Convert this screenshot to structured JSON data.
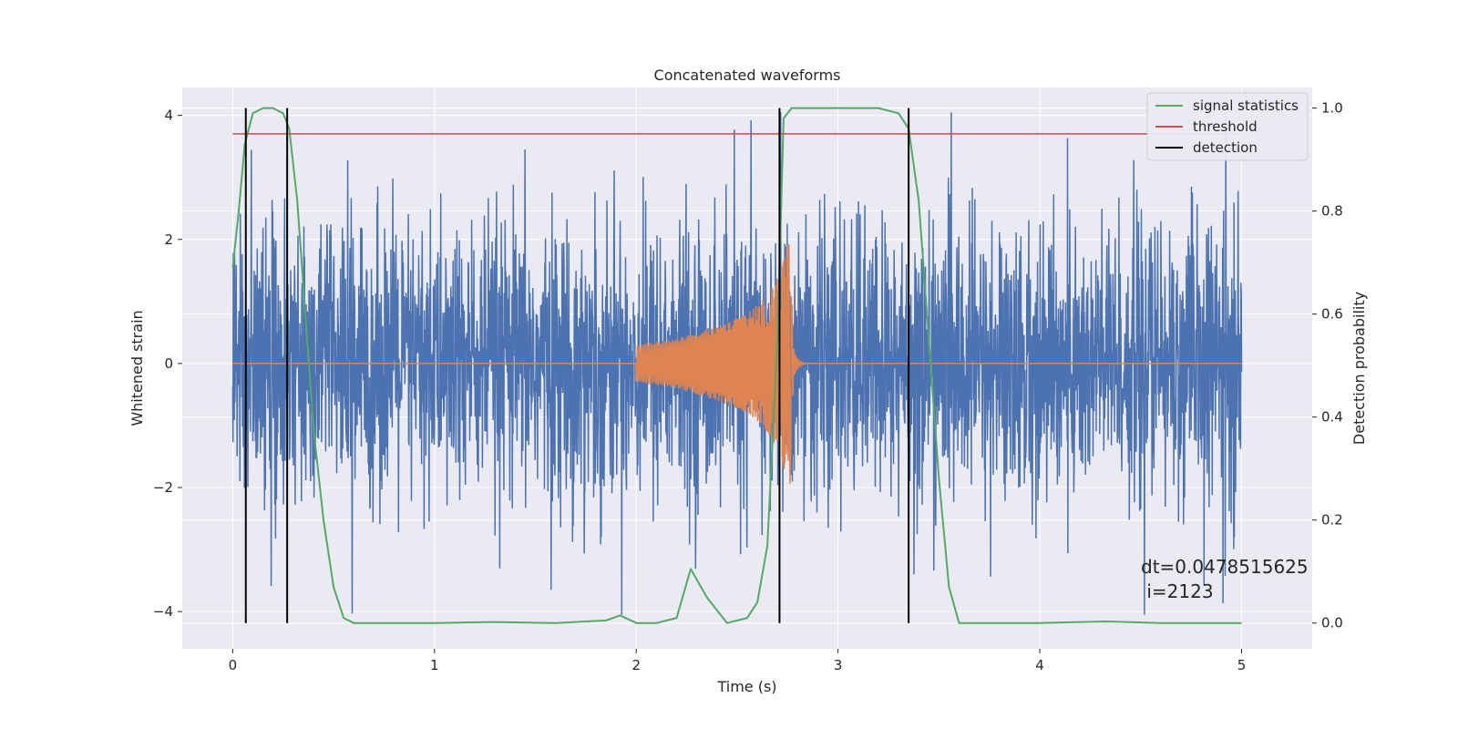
{
  "chart_data": {
    "type": "line",
    "title": "Concatenated waveforms",
    "xlabel": "Time (s)",
    "ylabel": "Whitened strain",
    "y2label": "Detection probability",
    "xlim": [
      -0.25,
      5.35
    ],
    "ylim": [
      -4.6,
      4.45
    ],
    "y2lim": [
      -0.05,
      1.04
    ],
    "xticks": [
      0,
      1,
      2,
      3,
      4,
      5
    ],
    "xtick_labels": [
      "0",
      "1",
      "2",
      "3",
      "4",
      "5"
    ],
    "yticks": [
      -4,
      -2,
      0,
      2,
      4
    ],
    "ytick_labels": [
      "−4",
      "−2",
      "0",
      "2",
      "4"
    ],
    "y2ticks": [
      0.0,
      0.2,
      0.4,
      0.6,
      0.8,
      1.0
    ],
    "y2tick_labels": [
      "0.0",
      "0.2",
      "0.4",
      "0.6",
      "0.8",
      "1.0"
    ],
    "grid": true,
    "legend_position": "top-right",
    "colors": {
      "background": "#eaeaf2",
      "grid": "#ffffff",
      "noise": "#4c72b0",
      "injection": "#dd8452",
      "signal": "#55a868",
      "threshold": "#c44e52",
      "detection": "#000000"
    },
    "series": [
      {
        "name": "",
        "role": "noise",
        "x_range": [
          0,
          5
        ],
        "envelope_typical": 2.0,
        "envelope_max": 4.05
      },
      {
        "name": "",
        "role": "injection",
        "x": [
          0,
          2.0,
          2.2,
          2.4,
          2.55,
          2.65,
          2.72,
          2.76,
          2.78,
          2.85,
          5
        ],
        "amplitude": [
          0,
          0.3,
          0.4,
          0.6,
          0.8,
          1.1,
          1.5,
          2.1,
          0.4,
          0.02,
          0
        ]
      },
      {
        "name": "signal statistics",
        "role": "signal",
        "axis": "right",
        "x": [
          0,
          0.03,
          0.06,
          0.1,
          0.15,
          0.2,
          0.25,
          0.28,
          0.32,
          0.36,
          0.4,
          0.45,
          0.5,
          0.55,
          0.6,
          1.0,
          1.3,
          1.6,
          1.85,
          1.92,
          2.0,
          2.1,
          2.2,
          2.27,
          2.35,
          2.45,
          2.55,
          2.6,
          2.65,
          2.7,
          2.73,
          2.77,
          3.0,
          3.2,
          3.3,
          3.35,
          3.4,
          3.45,
          3.5,
          3.55,
          3.6,
          4.0,
          4.33,
          4.6,
          5.0
        ],
        "y": [
          0.69,
          0.8,
          0.93,
          0.99,
          1.0,
          1.0,
          0.99,
          0.96,
          0.82,
          0.6,
          0.38,
          0.2,
          0.07,
          0.01,
          0.0,
          0.0,
          0.002,
          0.0,
          0.005,
          0.015,
          0.0,
          0.0,
          0.01,
          0.105,
          0.05,
          0.0,
          0.01,
          0.04,
          0.15,
          0.55,
          0.98,
          1.0,
          1.0,
          1.0,
          0.99,
          0.96,
          0.82,
          0.55,
          0.28,
          0.07,
          0.0,
          0.0,
          0.003,
          0.0,
          0.0
        ]
      },
      {
        "name": "threshold",
        "role": "threshold",
        "axis": "right",
        "x": [
          0,
          5
        ],
        "y": [
          0.95,
          0.95
        ]
      },
      {
        "name": "detection",
        "role": "detection",
        "x": [
          0.065,
          0.27,
          2.71,
          3.35
        ]
      }
    ],
    "annotation": {
      "lines": [
        "dt=0.0478515625",
        " i=2123"
      ]
    }
  }
}
